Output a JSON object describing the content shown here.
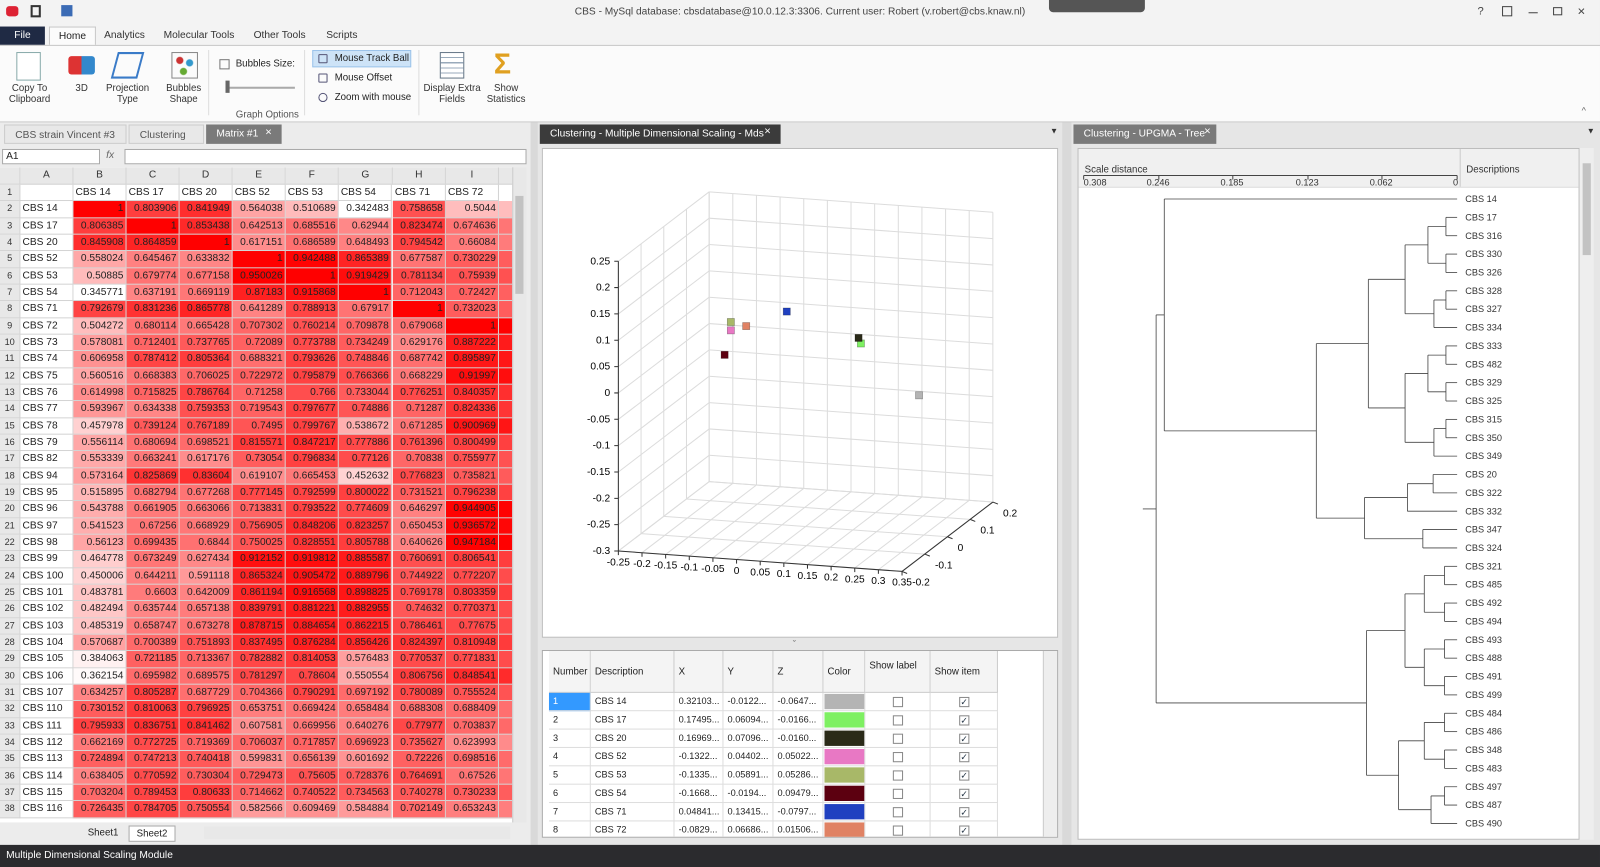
{
  "window": {
    "title": "CBS - MySql database: cbsdatabase@10.0.12.3:3306. Current user: Robert (v.robert@cbs.knaw.nl)"
  },
  "ribbon": {
    "tabs": [
      "File",
      "Home",
      "Analytics",
      "Molecular Tools",
      "Other Tools",
      "Scripts"
    ],
    "buttons": [
      "Copy To Clipboard",
      "3D",
      "Projection Type",
      "Bubbles Shape"
    ],
    "bubbles_size": "Bubbles Size:",
    "mouse_options": [
      "Mouse Track Ball",
      "Mouse Offset",
      "Zoom with mouse"
    ],
    "buttons_right": [
      "Display Extra Fields",
      "Show Statistics"
    ],
    "group_label": "Graph Options"
  },
  "doc_tabs": {
    "left": [
      "CBS strain Vincent #3",
      "Clustering",
      "Matrix #1"
    ],
    "middle": "Clustering - Multiple Dimensional Scaling - Mds",
    "right": "Clustering - UPGMA - Tree"
  },
  "spreadsheet": {
    "name_box": "A1",
    "fx": "fx",
    "columns": [
      "A",
      "B",
      "C",
      "D",
      "E",
      "F",
      "G",
      "H",
      "I"
    ],
    "row_numbers": [
      1,
      2,
      3,
      4,
      5,
      6,
      7,
      8,
      9,
      10,
      11,
      12,
      13,
      14,
      15,
      16,
      17,
      18,
      19,
      20,
      21,
      22,
      23,
      24,
      25,
      26,
      27,
      28,
      29,
      30,
      31,
      32,
      33,
      34,
      35,
      36,
      37,
      38
    ],
    "headers": [
      "CBS 14",
      "CBS 17",
      "CBS 20",
      "CBS 52",
      "CBS 53",
      "CBS 54",
      "CBS 71",
      "CBS 72"
    ],
    "rows": [
      {
        "name": "CBS 14",
        "values": [
          1,
          0.803906,
          0.841949,
          0.564038,
          0.510689,
          0.342483,
          0.758658,
          0.5044
        ]
      },
      {
        "name": "CBS 17",
        "values": [
          0.806385,
          1,
          0.853438,
          0.642513,
          0.685516,
          0.62944,
          0.823474,
          0.674636
        ]
      },
      {
        "name": "CBS 20",
        "values": [
          0.845908,
          0.864859,
          1,
          0.617151,
          0.686589,
          0.648493,
          0.794542,
          0.66084
        ]
      },
      {
        "name": "CBS 52",
        "values": [
          0.558024,
          0.645467,
          0.633832,
          1,
          0.942488,
          0.865389,
          0.677587,
          0.730229
        ]
      },
      {
        "name": "CBS 53",
        "values": [
          0.50885,
          0.679774,
          0.677158,
          0.950026,
          1,
          0.919429,
          0.781134,
          0.75939
        ]
      },
      {
        "name": "CBS 54",
        "values": [
          0.345771,
          0.637191,
          0.669119,
          0.87183,
          0.915868,
          1,
          0.712043,
          0.72427
        ]
      },
      {
        "name": "CBS 71",
        "values": [
          0.792679,
          0.831236,
          0.865778,
          0.641289,
          0.788913,
          0.67917,
          1,
          0.732023
        ]
      },
      {
        "name": "CBS 72",
        "values": [
          0.504272,
          0.680114,
          0.665428,
          0.707302,
          0.760214,
          0.709878,
          0.679068,
          1
        ]
      },
      {
        "name": "CBS 73",
        "values": [
          0.578081,
          0.712401,
          0.737765,
          0.72089,
          0.773788,
          0.734249,
          0.629176,
          0.887222
        ]
      },
      {
        "name": "CBS 74",
        "values": [
          0.606958,
          0.787412,
          0.805364,
          0.688321,
          0.793626,
          0.748846,
          0.687742,
          0.895897
        ]
      },
      {
        "name": "CBS 75",
        "values": [
          0.560516,
          0.668383,
          0.706025,
          0.722972,
          0.795879,
          0.766366,
          0.668229,
          0.91997
        ]
      },
      {
        "name": "CBS 76",
        "values": [
          0.614998,
          0.715825,
          0.786764,
          0.71258,
          0.766,
          0.733044,
          0.776251,
          0.840357
        ]
      },
      {
        "name": "CBS 77",
        "values": [
          0.593967,
          0.634338,
          0.759353,
          0.719543,
          0.797677,
          0.74886,
          0.71287,
          0.824336
        ]
      },
      {
        "name": "CBS 78",
        "values": [
          0.457978,
          0.739124,
          0.767189,
          0.7495,
          0.799767,
          0.538672,
          0.671285,
          0.900969
        ]
      },
      {
        "name": "CBS 79",
        "values": [
          0.556114,
          0.680694,
          0.698521,
          0.815571,
          0.847217,
          0.777886,
          0.761396,
          0.800499
        ]
      },
      {
        "name": "CBS 82",
        "values": [
          0.553339,
          0.663241,
          0.617176,
          0.73054,
          0.796834,
          0.77126,
          0.70838,
          0.755977
        ]
      },
      {
        "name": "CBS 94",
        "values": [
          0.573164,
          0.825869,
          0.83604,
          0.619107,
          0.665453,
          0.452632,
          0.776823,
          0.735821
        ]
      },
      {
        "name": "CBS 95",
        "values": [
          0.515895,
          0.682794,
          0.677268,
          0.777145,
          0.792599,
          0.800022,
          0.731521,
          0.796238
        ]
      },
      {
        "name": "CBS 96",
        "values": [
          0.543788,
          0.661905,
          0.663066,
          0.713831,
          0.793522,
          0.774609,
          0.646297,
          0.944905
        ]
      },
      {
        "name": "CBS 97",
        "values": [
          0.541523,
          0.67256,
          0.668929,
          0.756905,
          0.848206,
          0.823257,
          0.650453,
          0.936572
        ]
      },
      {
        "name": "CBS 98",
        "values": [
          0.56123,
          0.699435,
          0.6844,
          0.750025,
          0.828551,
          0.805788,
          0.640626,
          0.947184
        ]
      },
      {
        "name": "CBS 99",
        "values": [
          0.464778,
          0.673249,
          0.627434,
          0.912152,
          0.919812,
          0.885587,
          0.760691,
          0.806541
        ]
      },
      {
        "name": "CBS 100",
        "values": [
          0.450006,
          0.644211,
          0.591118,
          0.865324,
          0.905472,
          0.889796,
          0.744922,
          0.772207
        ]
      },
      {
        "name": "CBS 101",
        "values": [
          0.483781,
          0.6603,
          0.642009,
          0.861194,
          0.916568,
          0.898825,
          0.769178,
          0.803359
        ]
      },
      {
        "name": "CBS 102",
        "values": [
          0.482494,
          0.635744,
          0.657138,
          0.839791,
          0.881221,
          0.882955,
          0.74632,
          0.770371
        ]
      },
      {
        "name": "CBS 103",
        "values": [
          0.485319,
          0.658747,
          0.673278,
          0.878715,
          0.884654,
          0.862215,
          0.786461,
          0.77675
        ]
      },
      {
        "name": "CBS 104",
        "values": [
          0.570687,
          0.700389,
          0.751893,
          0.837495,
          0.876284,
          0.856426,
          0.824397,
          0.810948
        ]
      },
      {
        "name": "CBS 105",
        "values": [
          0.384063,
          0.721185,
          0.713367,
          0.782882,
          0.814053,
          0.576483,
          0.770537,
          0.771831
        ]
      },
      {
        "name": "CBS 106",
        "values": [
          0.362154,
          0.695982,
          0.689575,
          0.781297,
          0.78604,
          0.550554,
          0.806756,
          0.848541
        ]
      },
      {
        "name": "CBS 107",
        "values": [
          0.634257,
          0.805287,
          0.687729,
          0.704366,
          0.790291,
          0.697192,
          0.780089,
          0.755524
        ]
      },
      {
        "name": "CBS 110",
        "values": [
          0.730152,
          0.810063,
          0.796925,
          0.653751,
          0.669424,
          0.658484,
          0.688308,
          0.688409
        ]
      },
      {
        "name": "CBS 111",
        "values": [
          0.795933,
          0.836751,
          0.841462,
          0.607581,
          0.669956,
          0.640276,
          0.77977,
          0.703837
        ]
      },
      {
        "name": "CBS 112",
        "values": [
          0.662169,
          0.772725,
          0.719369,
          0.706037,
          0.717857,
          0.696923,
          0.735627,
          0.623993
        ]
      },
      {
        "name": "CBS 113",
        "values": [
          0.724894,
          0.747213,
          0.740418,
          0.599831,
          0.656139,
          0.601692,
          0.72226,
          0.698516
        ]
      },
      {
        "name": "CBS 114",
        "values": [
          0.638405,
          0.770592,
          0.730304,
          0.729473,
          0.75605,
          0.728376,
          0.764691,
          0.67526
        ]
      },
      {
        "name": "CBS 115",
        "values": [
          0.703204,
          0.789453,
          0.80633,
          0.714662,
          0.740522,
          0.734563,
          0.740278,
          0.730233
        ]
      },
      {
        "name": "CBS 116",
        "values": [
          0.726435,
          0.784705,
          0.750554,
          0.582566,
          0.609469,
          0.584884,
          0.702149,
          0.653243
        ]
      }
    ],
    "sheet_tabs": [
      "Sheet1",
      "Sheet2"
    ]
  },
  "mds_plot": {
    "type": "scatter3d",
    "xlim": [
      -0.25,
      0.35
    ],
    "xticks": [
      -0.25,
      -0.2,
      -0.15,
      -0.1,
      -0.05,
      0,
      0.05,
      0.1,
      0.15,
      0.2,
      0.25,
      0.3,
      0.35
    ],
    "ylim": [
      -0.3,
      0.25
    ],
    "yticks": [
      0.25,
      0.2,
      0.15,
      0.1,
      0.05,
      0,
      -0.05,
      -0.1,
      -0.15,
      -0.2,
      -0.25,
      -0.3
    ],
    "zlim": [
      -0.2,
      0.2
    ],
    "zticks": [
      0.2,
      0.1,
      0,
      -0.1,
      -0.2
    ],
    "grid": true
  },
  "mds_table": {
    "headers": [
      "Number",
      "Description",
      "X",
      "Y",
      "Z",
      "Color",
      "Show label",
      "Show item"
    ],
    "rows": [
      {
        "number": 1,
        "description": "CBS 14",
        "x": "0.32103...",
        "y": "-0.0122...",
        "z": "-0.0647...",
        "color": "#b4b4b4",
        "show_label": false,
        "show_item": true
      },
      {
        "number": 2,
        "description": "CBS 17",
        "x": "0.17495...",
        "y": "0.06094...",
        "z": "-0.0166...",
        "color": "#7ef062",
        "show_label": false,
        "show_item": true
      },
      {
        "number": 3,
        "description": "CBS 20",
        "x": "0.16969...",
        "y": "0.07096...",
        "z": "-0.0160...",
        "color": "#2a2a18",
        "show_label": false,
        "show_item": true
      },
      {
        "number": 4,
        "description": "CBS 52",
        "x": "-0.1322...",
        "y": "0.04402...",
        "z": "0.05022...",
        "color": "#e878c4",
        "show_label": false,
        "show_item": true
      },
      {
        "number": 5,
        "description": "CBS 53",
        "x": "-0.1335...",
        "y": "0.05891...",
        "z": "0.05286...",
        "color": "#a8b868",
        "show_label": false,
        "show_item": true
      },
      {
        "number": 6,
        "description": "CBS 54",
        "x": "-0.1668...",
        "y": "-0.0194...",
        "z": "0.09479...",
        "color": "#5c0010",
        "show_label": false,
        "show_item": true
      },
      {
        "number": 7,
        "description": "CBS 71",
        "x": "0.04841...",
        "y": "0.13415...",
        "z": "-0.0797...",
        "color": "#2040c0",
        "show_label": false,
        "show_item": true
      },
      {
        "number": 8,
        "description": "CBS 72",
        "x": "-0.0829...",
        "y": "0.06686...",
        "z": "0.01506...",
        "color": "#e08264",
        "show_label": false,
        "show_item": true
      }
    ]
  },
  "tree": {
    "scale_label": "Scale distance",
    "xlim": [
      0.308,
      0
    ],
    "scale_ticks": [
      0.308,
      0.246,
      0.185,
      0.123,
      0.062,
      0
    ],
    "descriptions_header": "Descriptions",
    "leaves": [
      "CBS 14",
      "CBS 17",
      "CBS 316",
      "CBS 330",
      "CBS 326",
      "CBS 328",
      "CBS 327",
      "CBS 334",
      "CBS 333",
      "CBS 482",
      "CBS 329",
      "CBS 325",
      "CBS 315",
      "CBS 350",
      "CBS 349",
      "CBS 20",
      "CBS 322",
      "CBS 332",
      "CBS 347",
      "CBS 324",
      "CBS 321",
      "CBS 485",
      "CBS 492",
      "CBS 494",
      "CBS 493",
      "CBS 488",
      "CBS 491",
      "CBS 499",
      "CBS 484",
      "CBS 486",
      "CBS 348",
      "CBS 483",
      "CBS 497",
      "CBS 487",
      "CBS 490"
    ]
  },
  "status": "Multiple Dimensional Scaling Module"
}
